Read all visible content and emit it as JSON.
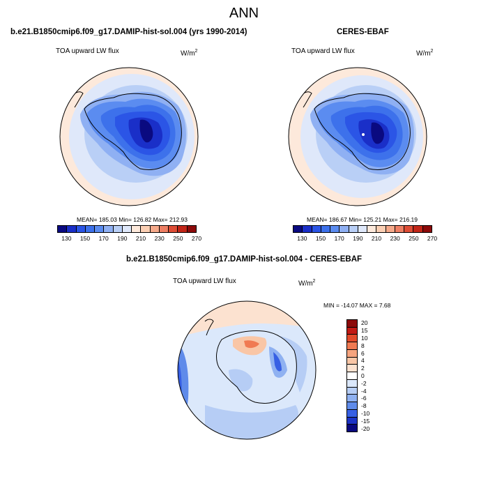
{
  "title": "ANN",
  "panels": [
    {
      "title": "b.e21.B1850cmip6.f09_g17.DAMIP-hist-sol.004 (yrs 1990-2014)",
      "variable": "TOA upward LW flux",
      "units_base": "W/m",
      "units_exp": "2",
      "stats": "MEAN= 185.03  Min= 126.82  Max= 212.93"
    },
    {
      "title": "CERES-EBAF",
      "variable": "TOA upward LW flux",
      "units_base": "W/m",
      "units_exp": "2",
      "stats": "MEAN= 186.67  Min= 125.21  Max= 216.19"
    },
    {
      "title": "b.e21.B1850cmip6.f09_g17.DAMIP-hist-sol.004 - CERES-EBAF",
      "variable": "TOA upward LW flux",
      "units_base": "W/m",
      "units_exp": "2",
      "stats": "MIN = -14.07 MAX =   7.68"
    }
  ],
  "colorbar_main": {
    "colors": [
      "#0a0a80",
      "#1a2fc8",
      "#2b55e6",
      "#3d71eb",
      "#5b8cf0",
      "#8fb0f3",
      "#b9cff6",
      "#dfe8fa",
      "#fde9db",
      "#fbcfb4",
      "#f5a98a",
      "#ee7f64",
      "#de4d36",
      "#c22618",
      "#8c0a0a"
    ],
    "ticks": [
      "130",
      "150",
      "170",
      "190",
      "210",
      "230",
      "250",
      "270"
    ]
  },
  "colorbar_diff": {
    "colors": [
      "#8c0a0a",
      "#c11a14",
      "#e24a2a",
      "#f07a52",
      "#f6a47e",
      "#f9c6a6",
      "#fce2d0",
      "#ffffff",
      "#dbe8fb",
      "#b6cdf5",
      "#8fb1f1",
      "#5f8bea",
      "#3760e4",
      "#1c33c5",
      "#09097f"
    ],
    "ticks": [
      "20",
      "15",
      "10",
      "8",
      "6",
      "4",
      "2",
      "0",
      "-2",
      "-4",
      "-6",
      "-8",
      "-10",
      "-15",
      "-20"
    ]
  },
  "chart_data": [
    {
      "type": "heatmap",
      "title": "b.e21.B1850cmip6.f09_g17.DAMIP-hist-sol.004 (yrs 1990-2014)",
      "variable": "TOA upward LW flux",
      "units": "W/m2",
      "projection": "south polar stereographic",
      "mean": 185.03,
      "min": 126.82,
      "max": 212.93,
      "levels": [
        130,
        140,
        150,
        160,
        170,
        180,
        190,
        200,
        210,
        220,
        230,
        240,
        250,
        260,
        270
      ]
    },
    {
      "type": "heatmap",
      "title": "CERES-EBAF",
      "variable": "TOA upward LW flux",
      "units": "W/m2",
      "projection": "south polar stereographic",
      "mean": 186.67,
      "min": 125.21,
      "max": 216.19,
      "levels": [
        130,
        140,
        150,
        160,
        170,
        180,
        190,
        200,
        210,
        220,
        230,
        240,
        250,
        260,
        270
      ]
    },
    {
      "type": "heatmap",
      "title": "b.e21.B1850cmip6.f09_g17.DAMIP-hist-sol.004 - CERES-EBAF",
      "variable": "TOA upward LW flux",
      "units": "W/m2",
      "projection": "south polar stereographic",
      "min": -14.07,
      "max": 7.68,
      "levels": [
        -20,
        -15,
        -10,
        -8,
        -6,
        -4,
        -2,
        0,
        2,
        4,
        6,
        8,
        10,
        15,
        20
      ]
    }
  ]
}
